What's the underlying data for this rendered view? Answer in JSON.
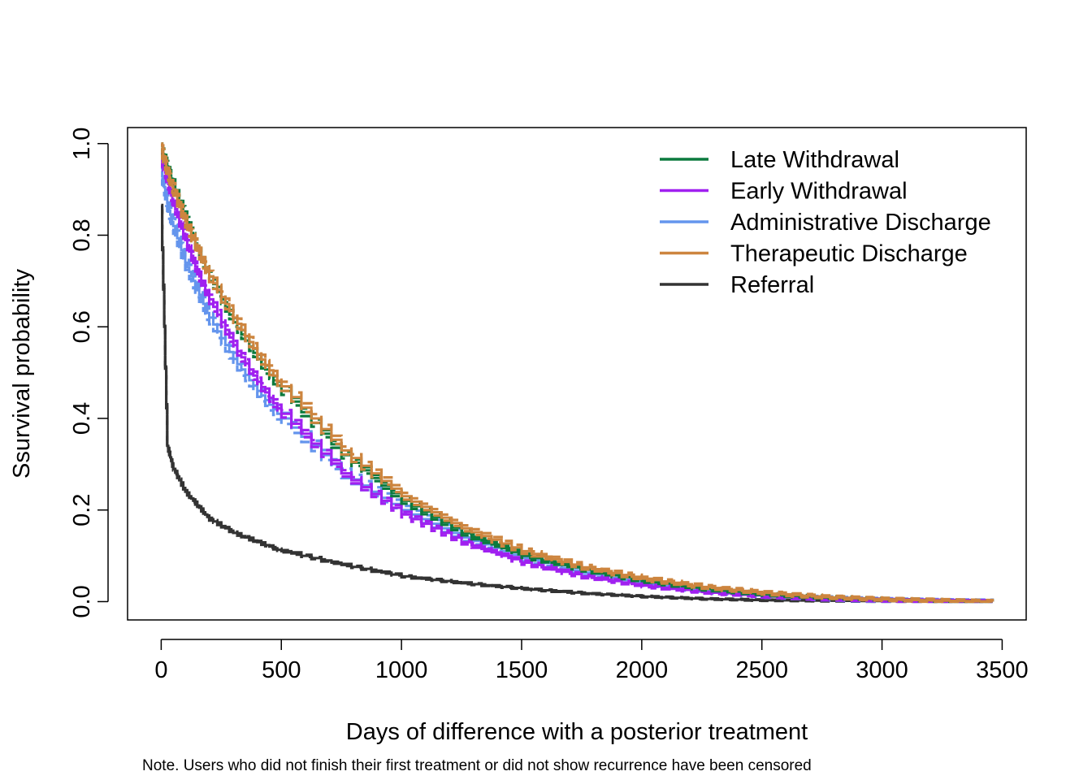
{
  "chart_data": {
    "type": "line",
    "title": "",
    "xlabel": "Days of difference with a posterior treatment",
    "ylabel": "Ssurvival probability",
    "note": "Note. Users who did not finish their first treatment or did not show recurrence have been censored",
    "xlim": [
      -140,
      3600
    ],
    "ylim": [
      -0.04,
      1.035
    ],
    "x_ticks": [
      0,
      500,
      1000,
      1500,
      2000,
      2500,
      3000,
      3500
    ],
    "x_tick_labels": [
      "0",
      "500",
      "1000",
      "1500",
      "2000",
      "2500",
      "3000",
      "3500"
    ],
    "y_ticks": [
      0.0,
      0.2,
      0.4,
      0.6,
      0.8,
      1.0
    ],
    "y_tick_labels": [
      "0.0",
      "0.2",
      "0.4",
      "0.6",
      "0.8",
      "1.0"
    ],
    "grid": false,
    "legend_position": "top-right",
    "confidence_bands": "dashed",
    "x": [
      0,
      25,
      50,
      100,
      150,
      200,
      300,
      400,
      500,
      750,
      1000,
      1250,
      1500,
      1750,
      2000,
      2250,
      2500,
      2750,
      3000,
      3250,
      3460
    ],
    "series": [
      {
        "name": "Late Withdrawal",
        "color": "#0b7a3e",
        "values": [
          0.99,
          0.95,
          0.91,
          0.84,
          0.77,
          0.71,
          0.61,
          0.53,
          0.46,
          0.32,
          0.22,
          0.15,
          0.1,
          0.07,
          0.045,
          0.028,
          0.016,
          0.009,
          0.005,
          0.002,
          0.0
        ],
        "ci_width": 0.012
      },
      {
        "name": "Early Withdrawal",
        "color": "#a020f0",
        "values": [
          0.97,
          0.92,
          0.87,
          0.79,
          0.72,
          0.66,
          0.56,
          0.48,
          0.41,
          0.28,
          0.19,
          0.13,
          0.085,
          0.055,
          0.035,
          0.021,
          0.012,
          0.006,
          0.003,
          0.001,
          0.0
        ],
        "ci_width": 0.012
      },
      {
        "name": "Administrative Discharge",
        "color": "#6495ed",
        "values": [
          0.94,
          0.87,
          0.82,
          0.74,
          0.68,
          0.62,
          0.53,
          0.46,
          0.4,
          0.28,
          0.2,
          0.14,
          0.095,
          0.063,
          0.04,
          0.024,
          0.013,
          0.007,
          0.003,
          0.001,
          0.0
        ],
        "ci_width": 0.018
      },
      {
        "name": "Therapeutic Discharge",
        "color": "#cd853f",
        "values": [
          0.99,
          0.94,
          0.9,
          0.83,
          0.77,
          0.71,
          0.62,
          0.54,
          0.47,
          0.33,
          0.23,
          0.16,
          0.11,
          0.075,
          0.05,
          0.032,
          0.019,
          0.01,
          0.005,
          0.002,
          0.0
        ],
        "ci_width": 0.014
      },
      {
        "name": "Referral",
        "color": "#333333",
        "values": [
          0.86,
          0.34,
          0.29,
          0.24,
          0.21,
          0.18,
          0.15,
          0.13,
          0.11,
          0.08,
          0.055,
          0.04,
          0.028,
          0.018,
          0.011,
          0.006,
          0.003,
          0.002,
          0.001,
          0.0,
          0.0
        ],
        "ci_width": 0.006
      }
    ]
  }
}
